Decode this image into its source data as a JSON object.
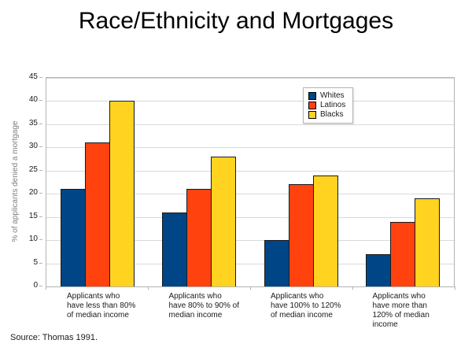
{
  "slide": {
    "title": "Race/Ethnicity and Mortgages",
    "source": "Source: Thomas 1991."
  },
  "chart_data": {
    "type": "bar",
    "title": "Race/Ethnicity and Mortgages",
    "xlabel": "",
    "ylabel": "% of applicants denied a mortgage",
    "ylim": [
      0,
      45
    ],
    "yticks": [
      0,
      5,
      10,
      15,
      20,
      25,
      30,
      35,
      40,
      45
    ],
    "grid": true,
    "legend_position": "top-right-inside",
    "categories": [
      "Applicants who\nhave less than 80%\nof median income",
      "Applicants who\nhave 80% to 90% of\nmedian income",
      "Applicants who\nhave 100% to 120%\nof median income",
      "Applicants who\nhave more than\n120% of median\nincome"
    ],
    "series": [
      {
        "name": "Whites",
        "color": "#004586",
        "values": [
          21,
          16,
          10,
          7
        ]
      },
      {
        "name": "Latinos",
        "color": "#FF420E",
        "values": [
          31,
          21,
          22,
          14
        ]
      },
      {
        "name": "Blacks",
        "color": "#FFD320",
        "values": [
          40,
          28,
          24,
          19
        ]
      }
    ],
    "colors": {
      "grid": "#d9d9d9",
      "axis": "#b3b3b3",
      "ylabel_text": "#808080"
    }
  }
}
